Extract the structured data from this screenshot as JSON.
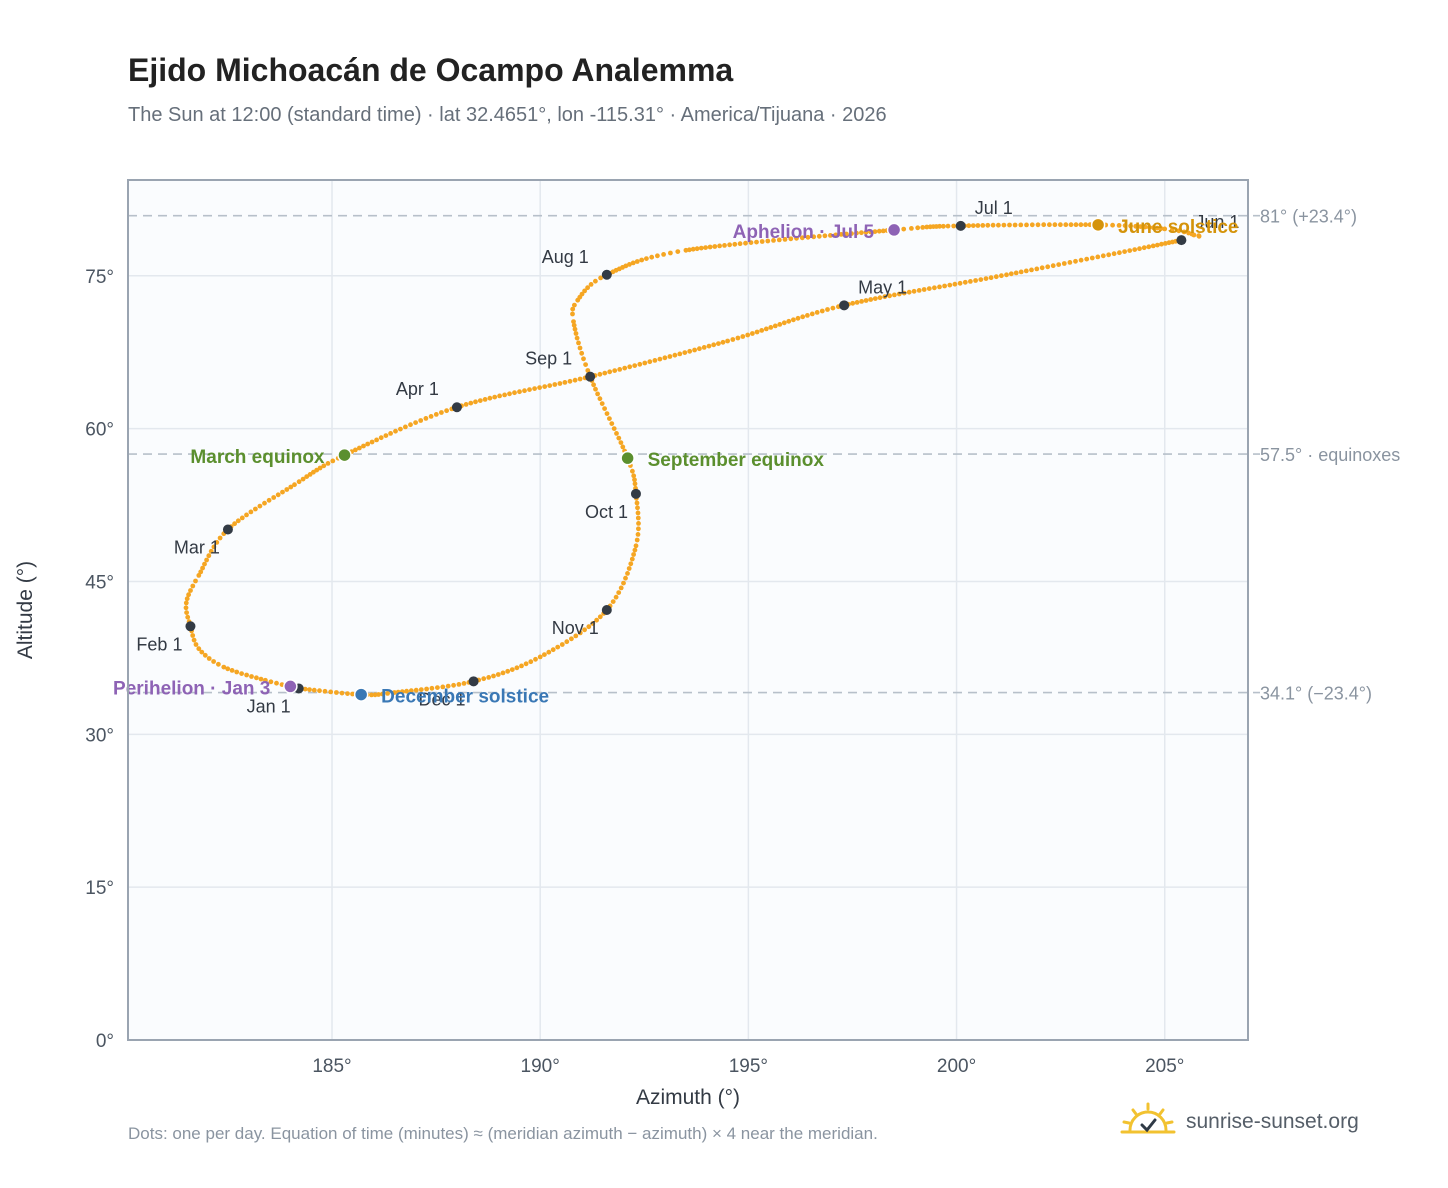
{
  "title": "Ejido Michoacán de Ocampo Analemma",
  "subtitle": "The Sun at 12:00 (standard time) · lat 32.4651°, lon -115.31° · America/Tijuana · 2026",
  "footnote": "Dots: one per day. Equation of time (minutes) ≈ (meridian azimuth − azimuth) × 4 near the meridian.",
  "brand": {
    "text": "sunrise-sunset.org",
    "icon": "sun-logo-icon"
  },
  "colors": {
    "path": "#f5a623",
    "month_dot": "#333b45",
    "equinox": "#5b8f2e",
    "june_solstice": "#d4930a",
    "december_solstice": "#3a78b5",
    "apsis": "#8e63b5",
    "reference_line": "#b7c0ca",
    "plot_bg": "#fafcfe",
    "grid": "#e3e8ee",
    "frame": "#9aa4b1"
  },
  "chart_data": {
    "type": "scatter",
    "xlabel": "Azimuth (°)",
    "ylabel": "Altitude (°)",
    "xlim": [
      180.1,
      207.0
    ],
    "ylim": [
      0,
      84.4
    ],
    "x_ticks": [
      185,
      190,
      195,
      200,
      205
    ],
    "x_tick_labels": [
      "185°",
      "190°",
      "195°",
      "200°",
      "205°"
    ],
    "y_ticks": [
      0,
      15,
      30,
      45,
      60,
      75
    ],
    "y_tick_labels": [
      "0°",
      "15°",
      "30°",
      "45°",
      "60°",
      "75°"
    ],
    "grid": true,
    "path_anchors": [
      [
        184.2,
        34.5
      ],
      [
        183.4,
        35.3
      ],
      [
        182.4,
        36.6
      ],
      [
        181.8,
        38.4
      ],
      [
        181.6,
        40.6
      ],
      [
        181.5,
        42.9
      ],
      [
        181.8,
        45.6
      ],
      [
        182.5,
        50.1
      ],
      [
        184.1,
        54.5
      ],
      [
        185.3,
        57.4
      ],
      [
        188.0,
        62.1
      ],
      [
        191.2,
        65.1
      ],
      [
        194.5,
        68.6
      ],
      [
        197.3,
        72.1
      ],
      [
        201.2,
        75.1
      ],
      [
        205.4,
        78.5
      ],
      [
        205.7,
        79.0
      ],
      [
        205.0,
        79.6
      ],
      [
        203.4,
        80.0
      ],
      [
        200.1,
        79.9
      ],
      [
        198.5,
        79.5
      ],
      [
        193.5,
        77.5
      ],
      [
        191.6,
        75.1
      ],
      [
        190.9,
        72.6
      ],
      [
        190.8,
        70.5
      ],
      [
        191.2,
        65.1
      ],
      [
        192.1,
        57.1
      ],
      [
        192.3,
        53.6
      ],
      [
        192.3,
        48.5
      ],
      [
        191.6,
        42.2
      ],
      [
        190.0,
        37.6
      ],
      [
        188.4,
        35.2
      ],
      [
        186.5,
        34.1
      ],
      [
        185.7,
        33.9
      ],
      [
        184.2,
        34.5
      ]
    ],
    "month_points": [
      {
        "label": "Jan 1",
        "x": 184.2,
        "y": 34.5,
        "label_pos": "below-left"
      },
      {
        "label": "Feb 1",
        "x": 181.6,
        "y": 40.6,
        "label_pos": "below-left"
      },
      {
        "label": "Mar 1",
        "x": 182.5,
        "y": 50.1,
        "label_pos": "below-left"
      },
      {
        "label": "Apr 1",
        "x": 188.0,
        "y": 62.1,
        "label_pos": "above-left"
      },
      {
        "label": "May 1",
        "x": 197.3,
        "y": 72.1,
        "label_pos": "above-right"
      },
      {
        "label": "Jun 1",
        "x": 205.4,
        "y": 78.5,
        "label_pos": "above-right"
      },
      {
        "label": "Jul 1",
        "x": 200.1,
        "y": 79.9,
        "label_pos": "above-right"
      },
      {
        "label": "Aug 1",
        "x": 191.6,
        "y": 75.1,
        "label_pos": "above-left"
      },
      {
        "label": "Sep 1",
        "x": 191.2,
        "y": 65.1,
        "label_pos": "above-left"
      },
      {
        "label": "Oct 1",
        "x": 192.3,
        "y": 53.6,
        "label_pos": "below-left"
      },
      {
        "label": "Nov 1",
        "x": 191.6,
        "y": 42.2,
        "label_pos": "below-left"
      },
      {
        "label": "Dec 1",
        "x": 188.4,
        "y": 35.2,
        "label_pos": "below-left"
      }
    ],
    "special_points": [
      {
        "label": "March equinox",
        "x": 185.3,
        "y": 57.4,
        "color_key": "equinox",
        "label_pos": "left"
      },
      {
        "label": "September equinox",
        "x": 192.1,
        "y": 57.1,
        "color_key": "equinox",
        "label_pos": "right"
      },
      {
        "label": "June solstice",
        "x": 203.4,
        "y": 80.0,
        "color_key": "june_solstice",
        "label_pos": "right"
      },
      {
        "label": "December solstice",
        "x": 185.7,
        "y": 33.9,
        "color_key": "december_solstice",
        "label_pos": "right"
      },
      {
        "label": "Aphelion · Jul 5",
        "x": 198.5,
        "y": 79.5,
        "color_key": "apsis",
        "label_pos": "left"
      },
      {
        "label": "Perihelion · Jan 3",
        "x": 184.0,
        "y": 34.7,
        "color_key": "apsis",
        "label_pos": "left"
      }
    ],
    "reference_lines": [
      {
        "y": 80.9,
        "label": "81° (+23.4°)"
      },
      {
        "y": 57.5,
        "label": "57.5° · equinoxes"
      },
      {
        "y": 34.1,
        "label": "34.1° (−23.4°)"
      }
    ]
  }
}
